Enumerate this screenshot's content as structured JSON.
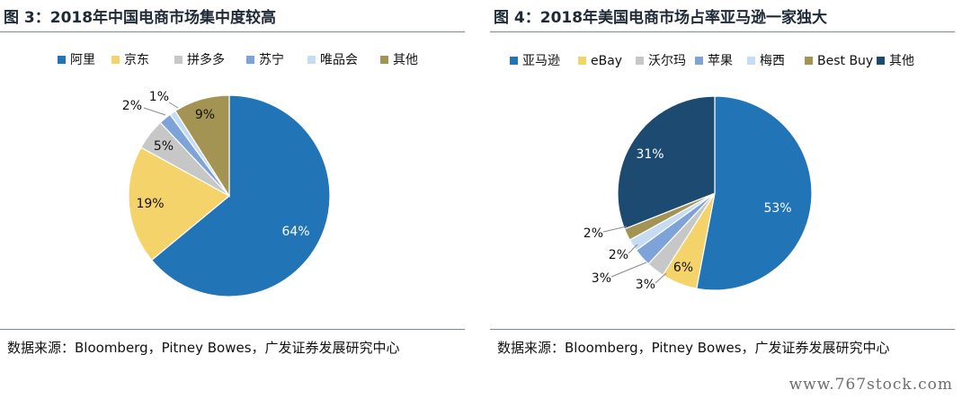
{
  "charts": [
    {
      "title": "图 3：2018年中国电商市场集中度较高",
      "source": "数据来源：Bloomberg，Pitney Bowes，广发证券发展研究中心"
    },
    {
      "title": "图 4：2018年美国电商市场占率亚马逊一家独大",
      "source": "数据来源：Bloomberg，Pitney Bowes，广发证券发展研究中心"
    }
  ],
  "chart_data": [
    {
      "type": "pie",
      "title": "图 3：2018年中国电商市场集中度较高",
      "categories": [
        "阿里",
        "京东",
        "拼多多",
        "苏宁",
        "唯品会",
        "其他"
      ],
      "values": [
        64,
        19,
        5,
        2,
        1,
        9
      ],
      "labels": [
        "64%",
        "19%",
        "5%",
        "2%",
        "1%",
        "9%"
      ],
      "colors": [
        "#2174b5",
        "#f3d36a",
        "#c7c7c7",
        "#7da3d9",
        "#c5dcf3",
        "#a39454"
      ],
      "legend": "top"
    },
    {
      "type": "pie",
      "title": "图 4：2018年美国电商市场占率亚马逊一家独大",
      "categories": [
        "亚马逊",
        "eBay",
        "沃尔玛",
        "苹果",
        "梅西",
        "Best Buy",
        "其他"
      ],
      "values": [
        53,
        6,
        3,
        3,
        2,
        2,
        31
      ],
      "labels": [
        "53%",
        "6%",
        "3%",
        "3%",
        "2%",
        "2%",
        "31%"
      ],
      "colors": [
        "#2174b5",
        "#f3d36a",
        "#c7c7c7",
        "#7da3d9",
        "#c5dcf3",
        "#a39454",
        "#1c4a70"
      ],
      "legend": "top"
    }
  ],
  "watermark": "www.767stock.com"
}
